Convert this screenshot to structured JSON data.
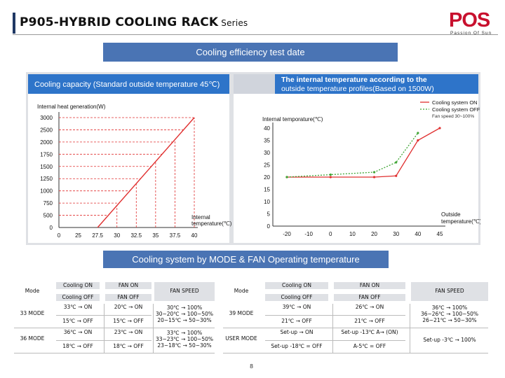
{
  "header": {
    "title": "P905-HYBRID COOLING RACK",
    "series": "Series",
    "logo_text": "POS",
    "logo_tagline": "Passion Of Sun",
    "accent_color": "#1f3864",
    "logo_color": "#c8102e"
  },
  "banner1": "Cooling efficiency test date",
  "banner2": "Cooling system by MODE & FAN Operating temperature",
  "chart_data": [
    {
      "type": "line",
      "title": "Cooling capacity (Standard outside temperature 45℃)",
      "ylabel": "Internal heat generation(W)",
      "xlabel": "Internal temperature(℃)",
      "x_ticks": [
        "0",
        "25",
        "27.5",
        "30",
        "32.5",
        "35",
        "37.5",
        "40"
      ],
      "y_ticks": [
        0,
        500,
        750,
        1000,
        1250,
        1500,
        1750,
        2000,
        2500,
        3000
      ],
      "ylim": [
        0,
        3000
      ],
      "series": [
        {
          "points": [
            {
              "x": "27.5",
              "y": 0
            },
            {
              "x": "40",
              "y": 3000
            }
          ],
          "color": "#e03030",
          "style": "solid"
        }
      ],
      "guides": {
        "color": "#e03030",
        "style": "dashed"
      }
    },
    {
      "type": "line",
      "title_lines": [
        "The internal temperature according to the",
        "outside temperature profiles(Based on 1500W)"
      ],
      "ylabel": "Internal temporature(℃)",
      "xlabel_lines": [
        "Outside",
        "temperature(℃)"
      ],
      "x_ticks": [
        "-20",
        "-10",
        "0",
        "10",
        "20",
        "30",
        "40",
        "45"
      ],
      "y_ticks": [
        0,
        5,
        10,
        15,
        20,
        25,
        30,
        35,
        40
      ],
      "ylim": [
        0,
        40
      ],
      "legend": {
        "position": "top-right",
        "entries": [
          "Cooling system ON",
          "Cooling system OFF"
        ],
        "note": "Fan speed 30~100%"
      },
      "series": [
        {
          "name": "Cooling system ON",
          "color": "#e03030",
          "style": "solid",
          "points": [
            {
              "x": -20,
              "y": 20
            },
            {
              "x": 0,
              "y": 20
            },
            {
              "x": 20,
              "y": 20
            },
            {
              "x": 30,
              "y": 20.5
            },
            {
              "x": 40,
              "y": 35
            },
            {
              "x": 45,
              "y": 40
            }
          ]
        },
        {
          "name": "Cooling system OFF",
          "color": "#3fa535",
          "style": "dotted",
          "points": [
            {
              "x": -20,
              "y": 20
            },
            {
              "x": 0,
              "y": 21
            },
            {
              "x": 20,
              "y": 22
            },
            {
              "x": 30,
              "y": 26
            },
            {
              "x": 40,
              "y": 38
            }
          ]
        }
      ]
    }
  ],
  "left_table": {
    "headers": {
      "mode": "Mode",
      "cooling_on": "Cooling ON",
      "cooling_off": "Cooling OFF",
      "fan_on": "FAN ON",
      "fan_off": "FAN OFF",
      "fan_speed": "FAN SPEED"
    },
    "rows": [
      {
        "mode": "33 MODE",
        "c_on": "33℃ → ON",
        "c_off": "15℃ → OFF",
        "f_on": "20℃ → ON",
        "f_off": "15℃ → OFF",
        "speed": [
          "30℃ → 100%",
          "30~20℃ → 100~50%",
          "20~15℃ → 50~30%"
        ]
      },
      {
        "mode": "36 MODE",
        "c_on": "36℃ → ON",
        "c_off": "18℃ → OFF",
        "f_on": "23℃ → ON",
        "f_off": "18℃ → OFF",
        "speed": [
          "33℃ → 100%",
          "33~23℃ → 100~50%",
          "23~18℃ → 50~30%"
        ]
      }
    ]
  },
  "right_table": {
    "headers": {
      "mode": "Mode",
      "cooling_on": "Cooling ON",
      "cooling_off": "Cooling OFF",
      "fan_on": "FAN ON",
      "fan_off": "FAN OFF",
      "fan_speed": "FAN SPEED"
    },
    "rows": [
      {
        "mode": "39 MODE",
        "c_on": "39℃ → ON",
        "c_off": "21℃ → OFF",
        "f_on": "26℃ → ON",
        "f_off": "21℃ → OFF",
        "speed": [
          "36℃ → 100%",
          "36~26℃ → 100~50%",
          "26~21℃ → 50~30%"
        ]
      },
      {
        "mode": "USER MODE",
        "c_on": "Set-up → ON",
        "c_off": "Set-up -18℃ = OFF",
        "f_on": "Set-up -13℃  A→ (ON)",
        "f_off": "A-5℃ = OFF",
        "speed": [
          "Set-up -3℃ → 100%"
        ]
      }
    ]
  },
  "page_number": "8"
}
